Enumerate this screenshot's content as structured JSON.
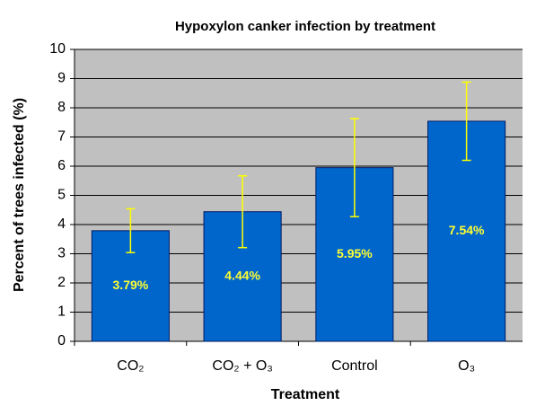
{
  "chart_data": {
    "type": "bar",
    "title": "Hypoxylon canker infection by treatment",
    "x_label": "Treatment",
    "y_label": "Percent of trees infected (%)",
    "categories": [
      "CO₂",
      "CO₂ + O₃",
      "Control",
      "O₃"
    ],
    "values": [
      3.79,
      4.44,
      5.95,
      7.54
    ],
    "value_labels": [
      "3.79%",
      "4.44%",
      "5.95%",
      "7.54%"
    ],
    "errors": [
      0.75,
      1.23,
      1.68,
      1.34
    ],
    "color": "#0066cc",
    "error_color": "#ffff00",
    "label_color": "#ffff33",
    "plot_background": "#c0c0c0",
    "ylim": [
      0,
      10
    ],
    "yticks": [
      0,
      1,
      2,
      3,
      4,
      5,
      6,
      7,
      8,
      9,
      10
    ],
    "grid": true
  }
}
